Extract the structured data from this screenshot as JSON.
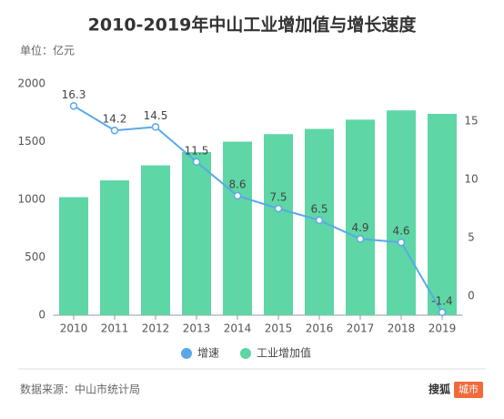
{
  "chart_data": {
    "type": "bar-line",
    "title": "2010-2019年中山工业增加值与增长速度",
    "subtitle": "单位：亿元",
    "source": "数据来源：中山市统计局",
    "logo": [
      "搜狐",
      "城市"
    ],
    "categories": [
      "2010",
      "2011",
      "2012",
      "2013",
      "2014",
      "2015",
      "2016",
      "2017",
      "2018",
      "2019"
    ],
    "series": [
      {
        "name": "工业增加值",
        "type": "bar",
        "color": "#5ed6a6",
        "values": [
          1020,
          1165,
          1295,
          1410,
          1500,
          1565,
          1610,
          1690,
          1770,
          1740
        ]
      },
      {
        "name": "增速",
        "type": "line",
        "axis": "y2",
        "color": "#5aa9e6",
        "values": [
          16.3,
          14.2,
          14.5,
          11.5,
          8.6,
          7.5,
          6.5,
          4.9,
          4.6,
          -1.4
        ]
      }
    ],
    "ylim": [
      0,
      2000
    ],
    "yticks": [
      0,
      500,
      1000,
      1500,
      2000
    ],
    "y2lim": [
      -1.64,
      18.2
    ],
    "y2ticks": [
      0,
      5,
      10,
      15
    ],
    "legend": "bottom"
  }
}
